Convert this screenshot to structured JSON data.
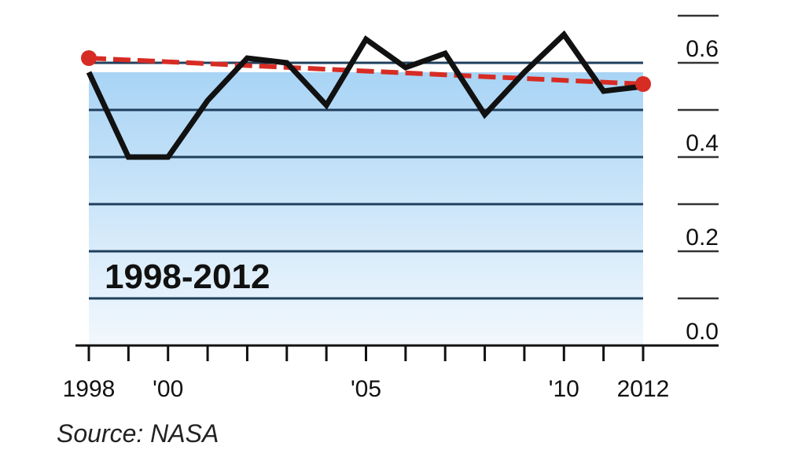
{
  "chart_data": {
    "type": "line",
    "title": "",
    "xlabel": "",
    "ylabel": "",
    "period_label": "1998-2012",
    "source": "Source: NASA",
    "x": [
      1998,
      1999,
      2000,
      2001,
      2002,
      2003,
      2004,
      2005,
      2006,
      2007,
      2008,
      2009,
      2010,
      2011,
      2012
    ],
    "x_tick_labels": [
      {
        "x": 1998,
        "label": "1998"
      },
      {
        "x": 2000,
        "label": "'00"
      },
      {
        "x": 2005,
        "label": "'05"
      },
      {
        "x": 2010,
        "label": "'10"
      },
      {
        "x": 2012,
        "label": "2012"
      }
    ],
    "y_tick_labels": [
      {
        "y": 0.0,
        "label": "0.0"
      },
      {
        "y": 0.2,
        "label": "0.2"
      },
      {
        "y": 0.4,
        "label": "0.4"
      },
      {
        "y": 0.6,
        "label": "0.6"
      }
    ],
    "xlim": [
      1998,
      2012
    ],
    "ylim": [
      0.0,
      0.7
    ],
    "gridlines_y": [
      0.1,
      0.2,
      0.3,
      0.4,
      0.5,
      0.6
    ],
    "grid": true,
    "series": [
      {
        "values": [
          0.58,
          0.4,
          0.4,
          0.52,
          0.61,
          0.6,
          0.51,
          0.65,
          0.59,
          0.62,
          0.49,
          0.58,
          0.66,
          0.54,
          0.55
        ]
      }
    ],
    "trend": {
      "start": {
        "x": 1998,
        "y": 0.61
      },
      "end": {
        "x": 2012,
        "y": 0.555
      }
    },
    "colors": {
      "line": "#111111",
      "trend": "#d62c24",
      "fill_top": "#a9d4f5",
      "fill_bottom": "#f2f8fd",
      "grid": "#1f3f5c",
      "axis": "#111111"
    }
  }
}
